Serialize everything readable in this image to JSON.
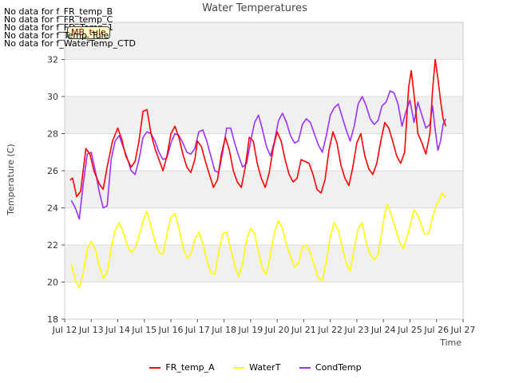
{
  "chart_data": {
    "type": "line",
    "title": "Water Temperatures",
    "xlabel": "Time",
    "ylabel": "Temperature (C)",
    "xlim": [
      12,
      27
    ],
    "ylim": [
      18,
      34
    ],
    "x_ticks": [
      12,
      13,
      14,
      15,
      16,
      17,
      18,
      19,
      20,
      21,
      22,
      23,
      24,
      25,
      26,
      27
    ],
    "x_tick_labels": [
      "Jul 12",
      "Jul 13",
      "Jul 14",
      "Jul 15",
      "Jul 16",
      "Jul 17",
      "Jul 18",
      "Jul 19",
      "Jul 20",
      "Jul 21",
      "Jul 22",
      "Jul 23",
      "Jul 24",
      "Jul 25",
      "Jul 26",
      "Jul 27"
    ],
    "y_ticks": [
      18,
      20,
      22,
      24,
      26,
      28,
      30,
      32
    ],
    "y_tick_labels": [
      "18",
      "20",
      "22",
      "24",
      "26",
      "28",
      "30",
      "32"
    ],
    "grid": true,
    "legend_position": "bottom",
    "no_data_messages": [
      "No data for f_FR_temp_B",
      "No data for f_FR_temp_C",
      "No data for f_FD_Temp_1",
      "No data for f_Temp_Tule",
      "No data for f_WaterTemp_CTD"
    ],
    "annotation": "MB_tule",
    "series": [
      {
        "name": "FR_temp_A",
        "color": "#ff0000",
        "points": [
          [
            12.2,
            25.5
          ],
          [
            12.3,
            25.6
          ],
          [
            12.45,
            24.6
          ],
          [
            12.6,
            24.9
          ],
          [
            12.8,
            27.2
          ],
          [
            12.95,
            26.9
          ],
          [
            13.1,
            26.0
          ],
          [
            13.3,
            25.3
          ],
          [
            13.45,
            25.0
          ],
          [
            13.6,
            26.2
          ],
          [
            13.8,
            27.6
          ],
          [
            14.0,
            28.3
          ],
          [
            14.15,
            27.7
          ],
          [
            14.3,
            26.8
          ],
          [
            14.5,
            26.2
          ],
          [
            14.65,
            26.5
          ],
          [
            14.8,
            27.6
          ],
          [
            14.95,
            29.2
          ],
          [
            15.1,
            29.3
          ],
          [
            15.25,
            28.0
          ],
          [
            15.4,
            27.2
          ],
          [
            15.55,
            26.6
          ],
          [
            15.7,
            26.0
          ],
          [
            15.85,
            26.8
          ],
          [
            16.0,
            28.0
          ],
          [
            16.15,
            28.4
          ],
          [
            16.3,
            27.8
          ],
          [
            16.45,
            26.9
          ],
          [
            16.6,
            26.2
          ],
          [
            16.75,
            25.9
          ],
          [
            16.9,
            26.6
          ],
          [
            17.0,
            27.6
          ],
          [
            17.15,
            27.3
          ],
          [
            17.3,
            26.5
          ],
          [
            17.45,
            25.8
          ],
          [
            17.6,
            25.1
          ],
          [
            17.75,
            25.5
          ],
          [
            17.9,
            26.9
          ],
          [
            18.05,
            27.8
          ],
          [
            18.2,
            27.1
          ],
          [
            18.35,
            26.0
          ],
          [
            18.5,
            25.4
          ],
          [
            18.65,
            25.1
          ],
          [
            18.8,
            26.2
          ],
          [
            18.95,
            27.8
          ],
          [
            19.1,
            27.6
          ],
          [
            19.25,
            26.4
          ],
          [
            19.4,
            25.6
          ],
          [
            19.55,
            25.1
          ],
          [
            19.7,
            25.9
          ],
          [
            19.85,
            27.2
          ],
          [
            20.0,
            28.1
          ],
          [
            20.15,
            27.6
          ],
          [
            20.3,
            26.6
          ],
          [
            20.45,
            25.8
          ],
          [
            20.6,
            25.4
          ],
          [
            20.75,
            25.6
          ],
          [
            20.9,
            26.6
          ],
          [
            21.05,
            26.5
          ],
          [
            21.2,
            26.4
          ],
          [
            21.35,
            25.8
          ],
          [
            21.5,
            25.0
          ],
          [
            21.65,
            24.8
          ],
          [
            21.8,
            25.5
          ],
          [
            21.95,
            27.1
          ],
          [
            22.1,
            28.1
          ],
          [
            22.25,
            27.5
          ],
          [
            22.4,
            26.3
          ],
          [
            22.55,
            25.6
          ],
          [
            22.7,
            25.2
          ],
          [
            22.85,
            26.2
          ],
          [
            23.0,
            27.5
          ],
          [
            23.15,
            28.0
          ],
          [
            23.3,
            26.8
          ],
          [
            23.45,
            26.1
          ],
          [
            23.6,
            25.8
          ],
          [
            23.75,
            26.4
          ],
          [
            23.9,
            27.6
          ],
          [
            24.05,
            28.6
          ],
          [
            24.2,
            28.3
          ],
          [
            24.35,
            27.6
          ],
          [
            24.5,
            26.8
          ],
          [
            24.65,
            26.4
          ],
          [
            24.8,
            27.0
          ],
          [
            24.95,
            30.5
          ],
          [
            25.05,
            31.4
          ],
          [
            25.2,
            29.5
          ],
          [
            25.3,
            28.0
          ],
          [
            25.45,
            27.5
          ],
          [
            25.6,
            26.9
          ],
          [
            25.75,
            28.0
          ],
          [
            25.85,
            30.3
          ],
          [
            25.95,
            32.0
          ],
          [
            26.05,
            31.0
          ],
          [
            26.15,
            29.8
          ],
          [
            26.25,
            28.8
          ],
          [
            26.35,
            28.4
          ]
        ]
      },
      {
        "name": "WaterT",
        "color": "#ffff00",
        "points": [
          [
            12.25,
            21.0
          ],
          [
            12.4,
            20.1
          ],
          [
            12.55,
            19.7
          ],
          [
            12.7,
            20.5
          ],
          [
            12.85,
            21.8
          ],
          [
            13.0,
            22.2
          ],
          [
            13.15,
            21.8
          ],
          [
            13.3,
            20.9
          ],
          [
            13.45,
            20.2
          ],
          [
            13.6,
            20.5
          ],
          [
            13.75,
            21.8
          ],
          [
            13.9,
            22.8
          ],
          [
            14.05,
            23.2
          ],
          [
            14.2,
            22.7
          ],
          [
            14.35,
            22.0
          ],
          [
            14.5,
            21.6
          ],
          [
            14.65,
            21.8
          ],
          [
            14.8,
            22.5
          ],
          [
            14.95,
            23.3
          ],
          [
            15.1,
            23.8
          ],
          [
            15.25,
            23.0
          ],
          [
            15.4,
            22.2
          ],
          [
            15.55,
            21.6
          ],
          [
            15.7,
            21.5
          ],
          [
            15.85,
            22.6
          ],
          [
            16.0,
            23.5
          ],
          [
            16.15,
            23.7
          ],
          [
            16.3,
            22.9
          ],
          [
            16.45,
            21.9
          ],
          [
            16.6,
            21.3
          ],
          [
            16.75,
            21.5
          ],
          [
            16.9,
            22.3
          ],
          [
            17.05,
            22.7
          ],
          [
            17.2,
            22.1
          ],
          [
            17.35,
            21.2
          ],
          [
            17.5,
            20.5
          ],
          [
            17.65,
            20.4
          ],
          [
            17.8,
            21.6
          ],
          [
            17.95,
            22.6
          ],
          [
            18.1,
            22.7
          ],
          [
            18.25,
            21.8
          ],
          [
            18.4,
            20.9
          ],
          [
            18.55,
            20.3
          ],
          [
            18.7,
            21.0
          ],
          [
            18.85,
            22.3
          ],
          [
            19.0,
            22.9
          ],
          [
            19.15,
            22.6
          ],
          [
            19.3,
            21.6
          ],
          [
            19.45,
            20.7
          ],
          [
            19.6,
            20.4
          ],
          [
            19.75,
            21.5
          ],
          [
            19.9,
            22.7
          ],
          [
            20.05,
            23.3
          ],
          [
            20.2,
            22.9
          ],
          [
            20.35,
            22.0
          ],
          [
            20.5,
            21.4
          ],
          [
            20.65,
            20.8
          ],
          [
            20.8,
            21.0
          ],
          [
            20.95,
            21.9
          ],
          [
            21.1,
            22.0
          ],
          [
            21.25,
            21.6
          ],
          [
            21.4,
            20.9
          ],
          [
            21.55,
            20.2
          ],
          [
            21.7,
            20.1
          ],
          [
            21.85,
            21.1
          ],
          [
            22.0,
            22.5
          ],
          [
            22.15,
            23.2
          ],
          [
            22.3,
            22.8
          ],
          [
            22.45,
            21.9
          ],
          [
            22.6,
            21.0
          ],
          [
            22.75,
            20.6
          ],
          [
            22.9,
            21.8
          ],
          [
            23.05,
            22.9
          ],
          [
            23.2,
            23.2
          ],
          [
            23.35,
            22.1
          ],
          [
            23.5,
            21.5
          ],
          [
            23.65,
            21.2
          ],
          [
            23.8,
            21.5
          ],
          [
            23.95,
            22.8
          ],
          [
            24.05,
            23.7
          ],
          [
            24.15,
            24.2
          ],
          [
            24.3,
            23.6
          ],
          [
            24.45,
            22.9
          ],
          [
            24.6,
            22.2
          ],
          [
            24.75,
            21.8
          ],
          [
            24.9,
            22.5
          ],
          [
            25.05,
            23.3
          ],
          [
            25.15,
            23.9
          ],
          [
            25.3,
            23.6
          ],
          [
            25.45,
            23.0
          ],
          [
            25.55,
            22.6
          ],
          [
            25.7,
            22.6
          ],
          [
            25.85,
            23.5
          ],
          [
            26.0,
            24.2
          ],
          [
            26.1,
            24.4
          ],
          [
            26.2,
            24.8
          ],
          [
            26.3,
            24.6
          ],
          [
            26.35,
            24.7
          ]
        ]
      },
      {
        "name": "CondTemp",
        "color": "#9b30ff",
        "points": [
          [
            12.25,
            24.4
          ],
          [
            12.4,
            24.0
          ],
          [
            12.55,
            23.4
          ],
          [
            12.7,
            25.3
          ],
          [
            12.85,
            26.9
          ],
          [
            13.0,
            27.0
          ],
          [
            13.15,
            26.0
          ],
          [
            13.3,
            24.9
          ],
          [
            13.45,
            24.0
          ],
          [
            13.6,
            24.1
          ],
          [
            13.75,
            26.6
          ],
          [
            13.9,
            27.6
          ],
          [
            14.05,
            27.9
          ],
          [
            14.2,
            27.3
          ],
          [
            14.35,
            26.7
          ],
          [
            14.5,
            26.0
          ],
          [
            14.65,
            25.8
          ],
          [
            14.8,
            26.6
          ],
          [
            14.95,
            27.8
          ],
          [
            15.1,
            28.1
          ],
          [
            15.25,
            28.0
          ],
          [
            15.4,
            27.6
          ],
          [
            15.55,
            27.0
          ],
          [
            15.7,
            26.6
          ],
          [
            15.85,
            26.7
          ],
          [
            16.0,
            27.5
          ],
          [
            16.15,
            28.0
          ],
          [
            16.3,
            27.9
          ],
          [
            16.45,
            27.5
          ],
          [
            16.6,
            27.0
          ],
          [
            16.75,
            26.9
          ],
          [
            16.9,
            27.2
          ],
          [
            17.05,
            28.1
          ],
          [
            17.2,
            28.2
          ],
          [
            17.35,
            27.6
          ],
          [
            17.5,
            26.8
          ],
          [
            17.65,
            26.0
          ],
          [
            17.8,
            25.9
          ],
          [
            17.95,
            27.0
          ],
          [
            18.1,
            28.3
          ],
          [
            18.25,
            28.3
          ],
          [
            18.4,
            27.5
          ],
          [
            18.55,
            26.8
          ],
          [
            18.7,
            26.2
          ],
          [
            18.85,
            26.4
          ],
          [
            19.0,
            27.6
          ],
          [
            19.15,
            28.6
          ],
          [
            19.3,
            29.0
          ],
          [
            19.45,
            28.2
          ],
          [
            19.6,
            27.3
          ],
          [
            19.75,
            26.8
          ],
          [
            19.9,
            27.6
          ],
          [
            20.05,
            28.7
          ],
          [
            20.2,
            29.1
          ],
          [
            20.35,
            28.6
          ],
          [
            20.5,
            27.9
          ],
          [
            20.65,
            27.5
          ],
          [
            20.8,
            27.6
          ],
          [
            20.95,
            28.5
          ],
          [
            21.1,
            28.8
          ],
          [
            21.25,
            28.6
          ],
          [
            21.4,
            28.0
          ],
          [
            21.55,
            27.4
          ],
          [
            21.7,
            27.0
          ],
          [
            21.85,
            27.9
          ],
          [
            22.0,
            29.0
          ],
          [
            22.15,
            29.4
          ],
          [
            22.3,
            29.6
          ],
          [
            22.45,
            28.9
          ],
          [
            22.6,
            28.2
          ],
          [
            22.75,
            27.6
          ],
          [
            22.9,
            28.4
          ],
          [
            23.05,
            29.6
          ],
          [
            23.2,
            30.0
          ],
          [
            23.35,
            29.5
          ],
          [
            23.5,
            28.8
          ],
          [
            23.65,
            28.5
          ],
          [
            23.8,
            28.7
          ],
          [
            23.95,
            29.5
          ],
          [
            24.1,
            29.7
          ],
          [
            24.25,
            30.3
          ],
          [
            24.4,
            30.2
          ],
          [
            24.55,
            29.6
          ],
          [
            24.7,
            28.4
          ],
          [
            24.85,
            29.2
          ],
          [
            25.0,
            29.8
          ],
          [
            25.15,
            28.6
          ],
          [
            25.3,
            29.7
          ],
          [
            25.45,
            29.0
          ],
          [
            25.6,
            28.3
          ],
          [
            25.75,
            28.5
          ],
          [
            25.85,
            29.5
          ],
          [
            25.95,
            28.2
          ],
          [
            26.05,
            27.1
          ],
          [
            26.15,
            27.6
          ],
          [
            26.25,
            28.5
          ],
          [
            26.35,
            28.8
          ]
        ]
      }
    ]
  }
}
